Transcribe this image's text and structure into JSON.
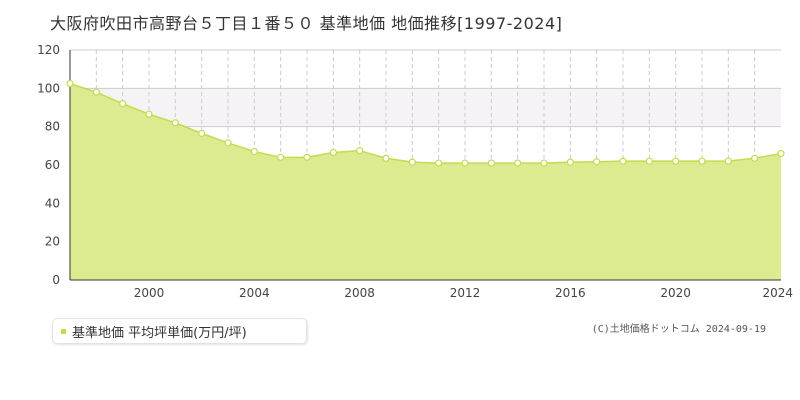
{
  "title": "大阪府吹田市高野台５丁目１番５０ 基準地価 地価推移[1997-2024]",
  "legend": {
    "label": "基準地価 平均坪単価(万円/坪)"
  },
  "copyright": "(C)土地価格ドットコム 2024-09-19",
  "colors": {
    "area_fill": "#dceb8f",
    "line": "#c5da4f",
    "band": "#f6f3f6",
    "grid": "#cccccc",
    "axis": "#333333"
  },
  "chart_data": {
    "type": "area",
    "x": [
      1997,
      1998,
      1999,
      2000,
      2001,
      2002,
      2003,
      2004,
      2005,
      2006,
      2007,
      2008,
      2009,
      2010,
      2011,
      2012,
      2013,
      2014,
      2015,
      2016,
      2017,
      2018,
      2019,
      2020,
      2021,
      2022,
      2023,
      2024
    ],
    "series": [
      {
        "name": "基準地価 平均坪単価(万円/坪)",
        "values": [
          102.5,
          98,
          92,
          86.5,
          82,
          76.5,
          71.5,
          67,
          64,
          64,
          66.5,
          67.5,
          63.5,
          61.5,
          61,
          61,
          61,
          61,
          61,
          61.5,
          61.7,
          62,
          62,
          62,
          62,
          62,
          63.5,
          66
        ]
      }
    ],
    "xlim": [
      1997,
      2024
    ],
    "ylim": [
      0,
      120
    ],
    "x_ticks": [
      2000,
      2004,
      2008,
      2012,
      2016,
      2020,
      2024
    ],
    "y_ticks": [
      0,
      20,
      40,
      60,
      80,
      100,
      120
    ],
    "highlight_band": [
      80,
      100
    ],
    "grid": true
  }
}
